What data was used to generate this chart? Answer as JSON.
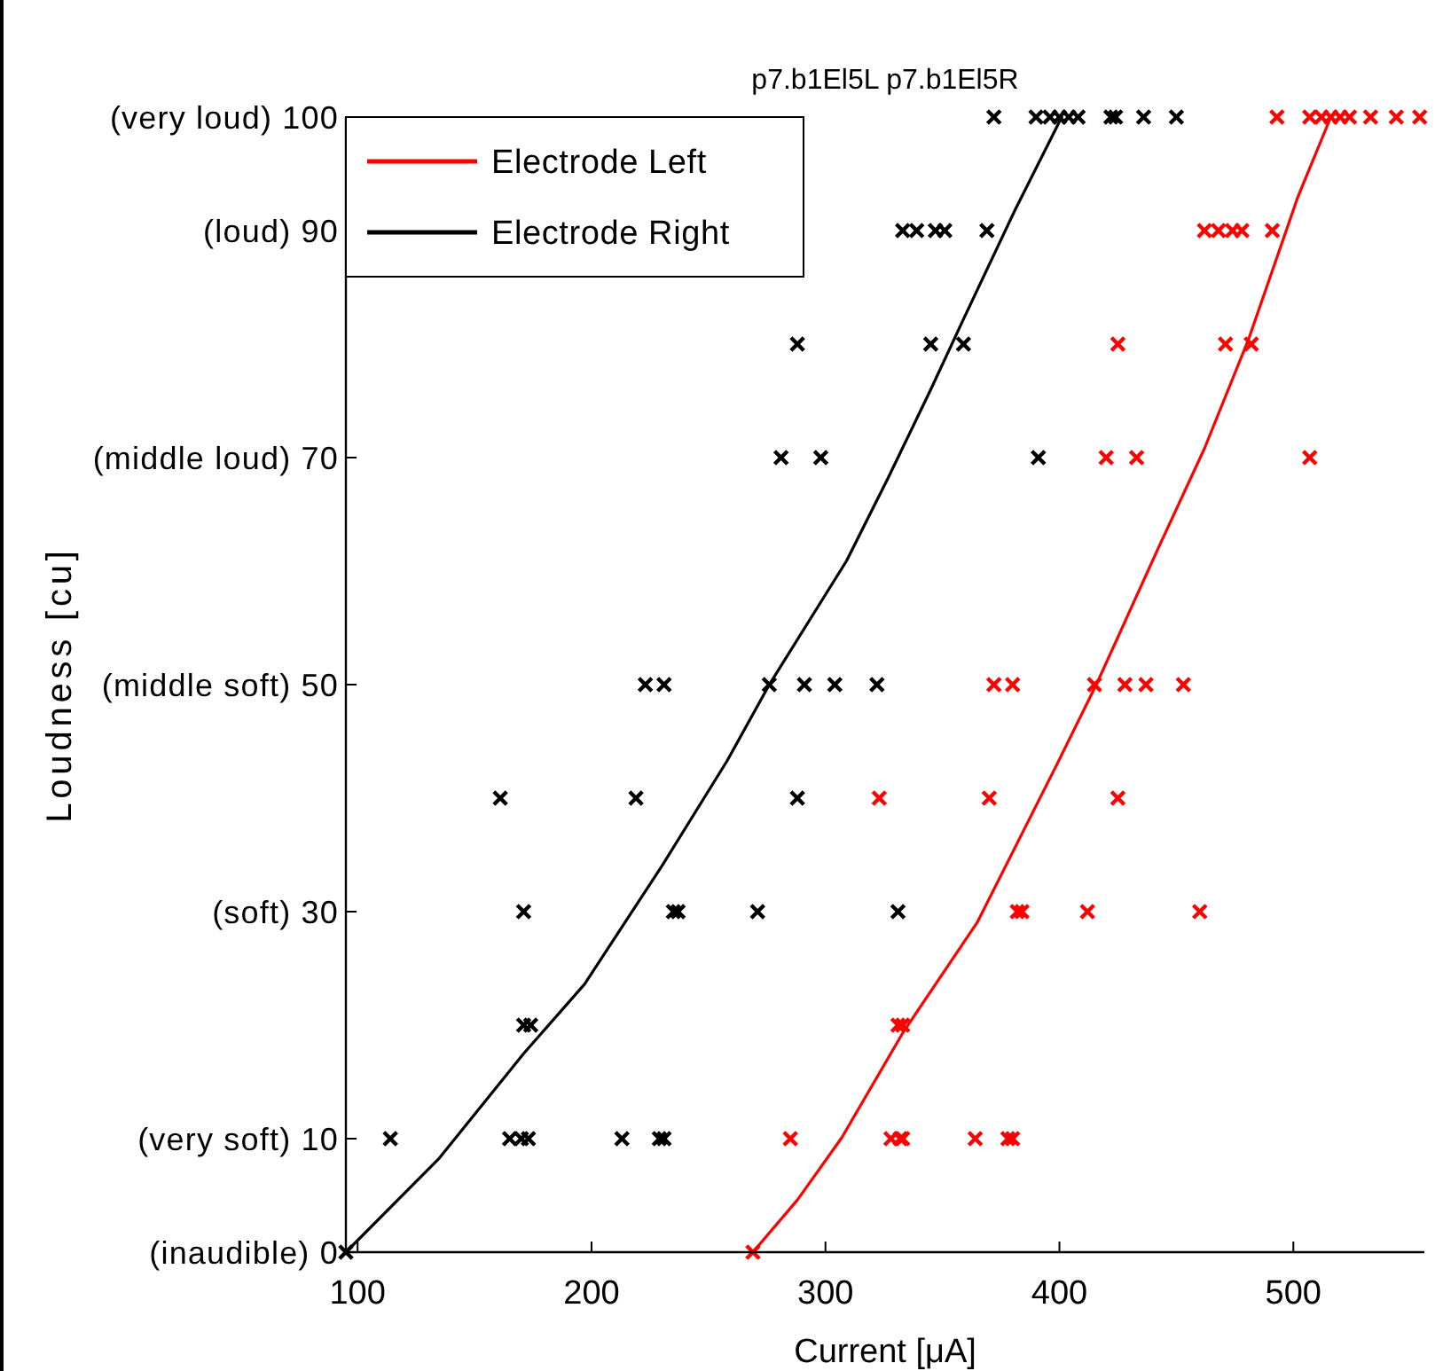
{
  "chart_data": {
    "type": "scatter",
    "title": "p7.b1El5L p7.b1El5R",
    "xlabel": "Current [μA]",
    "ylabel": "Loudness [cu]",
    "xlim": [
      95,
      556
    ],
    "ylim": [
      0,
      100
    ],
    "xticks": [
      100,
      200,
      300,
      400,
      500
    ],
    "yticks": [
      {
        "value": 0,
        "label": "(inaudible) 0"
      },
      {
        "value": 10,
        "label": "(very soft) 10"
      },
      {
        "value": 30,
        "label": "(soft) 30"
      },
      {
        "value": 50,
        "label": "(middle soft) 50"
      },
      {
        "value": 70,
        "label": "(middle loud) 70"
      },
      {
        "value": 90,
        "label": "(loud) 90"
      },
      {
        "value": 100,
        "label": "(very loud) 100"
      }
    ],
    "legend": "top left",
    "marker": "cross",
    "series": [
      {
        "name": "Electrode Left",
        "type": "line",
        "marker": "none",
        "color": "#ff0000",
        "x": [
          269,
          288,
          307,
          333,
          365,
          399,
          416,
          442,
          462,
          481,
          502,
          516
        ],
        "values": [
          0,
          4.6,
          10.1,
          19.3,
          29.1,
          43,
          50.1,
          61.9,
          70.8,
          80.5,
          93,
          100
        ]
      },
      {
        "name": "Electrode Right",
        "type": "line",
        "marker": "none",
        "color": "#000000",
        "x": [
          95,
          135,
          171,
          197,
          230,
          258,
          276,
          309,
          327,
          345,
          359,
          381,
          401
        ],
        "values": [
          0,
          8.3,
          17.5,
          23.6,
          34,
          43.3,
          50,
          60.9,
          68.3,
          76,
          82.2,
          91.8,
          100
        ]
      },
      {
        "color": "#ff0000",
        "x": [
          269,
          285,
          328,
          332,
          333,
          364,
          378,
          380,
          331,
          333,
          382,
          384,
          412,
          460,
          323,
          370,
          425,
          372,
          380,
          415,
          428,
          437,
          453,
          420,
          433,
          507,
          425,
          471,
          482,
          462,
          468,
          474,
          478,
          491,
          493,
          507,
          512,
          516,
          520,
          524,
          533,
          544,
          554
        ],
        "values": [
          0,
          10,
          10,
          10,
          10,
          10,
          10,
          10,
          20,
          20,
          30,
          30,
          30,
          30,
          40,
          40,
          40,
          50,
          50,
          50,
          50,
          50,
          50,
          70,
          70,
          70,
          80,
          80,
          80,
          90,
          90,
          90,
          90,
          90,
          100,
          100,
          100,
          100,
          100,
          100,
          100,
          100,
          100
        ]
      },
      {
        "color": "#000000",
        "x": [
          95,
          114,
          165,
          170,
          173,
          213,
          229,
          231,
          171,
          174,
          171,
          235,
          237,
          271,
          331,
          161,
          219,
          288,
          223,
          231,
          276,
          291,
          304,
          322,
          281,
          298,
          391,
          288,
          345,
          359,
          333,
          339,
          347,
          351,
          369,
          372,
          390,
          396,
          400,
          404,
          408,
          422,
          424,
          436,
          450
        ],
        "values": [
          0,
          10,
          10,
          10,
          10,
          10,
          10,
          10,
          20,
          20,
          30,
          30,
          30,
          30,
          30,
          40,
          40,
          40,
          50,
          50,
          50,
          50,
          50,
          50,
          70,
          70,
          70,
          80,
          80,
          80,
          90,
          90,
          90,
          90,
          90,
          100,
          100,
          100,
          100,
          100,
          100,
          100,
          100,
          100,
          100
        ]
      }
    ]
  }
}
